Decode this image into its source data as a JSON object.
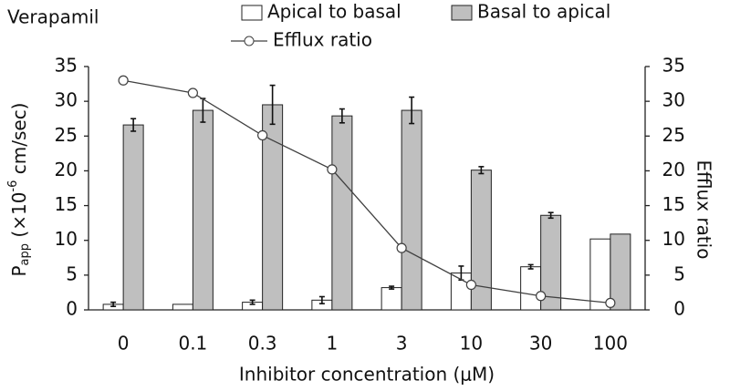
{
  "chart_data": {
    "type": "bar_line",
    "title": "Verapamil",
    "ylabel": {
      "main": "P",
      "sub": "app",
      "mid": " (×10",
      "sup": "-6",
      "end": " cm/sec)"
    },
    "y2label": "Efflux ratio",
    "xlabel": "Inhibitor concentration (μM)",
    "categories": [
      "0",
      "0.1",
      "0.3",
      "1",
      "3",
      "10",
      "30",
      "100"
    ],
    "series": [
      {
        "name": "Apical to basal",
        "color": "#ffffff",
        "values": [
          0.8,
          0.8,
          1.1,
          1.4,
          3.2,
          5.3,
          6.2,
          10.2
        ],
        "errors": [
          0.3,
          null,
          0.3,
          0.5,
          0.2,
          1.0,
          0.3,
          null
        ]
      },
      {
        "name": "Basal to apical",
        "color": "#bfbfbf",
        "values": [
          26.6,
          28.7,
          29.5,
          27.9,
          28.7,
          20.1,
          13.6,
          10.9
        ],
        "errors": [
          0.9,
          1.7,
          2.8,
          1.0,
          1.9,
          0.5,
          0.4,
          null
        ]
      },
      {
        "name": "Efflux ratio",
        "color": "#404040",
        "axis": "y2",
        "values": [
          33.0,
          31.2,
          25.1,
          20.2,
          8.9,
          3.6,
          2.0,
          1.0
        ]
      }
    ],
    "ylim": [
      0,
      35
    ],
    "yticks": [
      0,
      5,
      10,
      15,
      20,
      25,
      30,
      35
    ],
    "y2lim": [
      0,
      35
    ],
    "y2ticks": [
      0,
      5,
      10,
      15,
      20,
      25,
      30,
      35
    ],
    "grid": false
  }
}
